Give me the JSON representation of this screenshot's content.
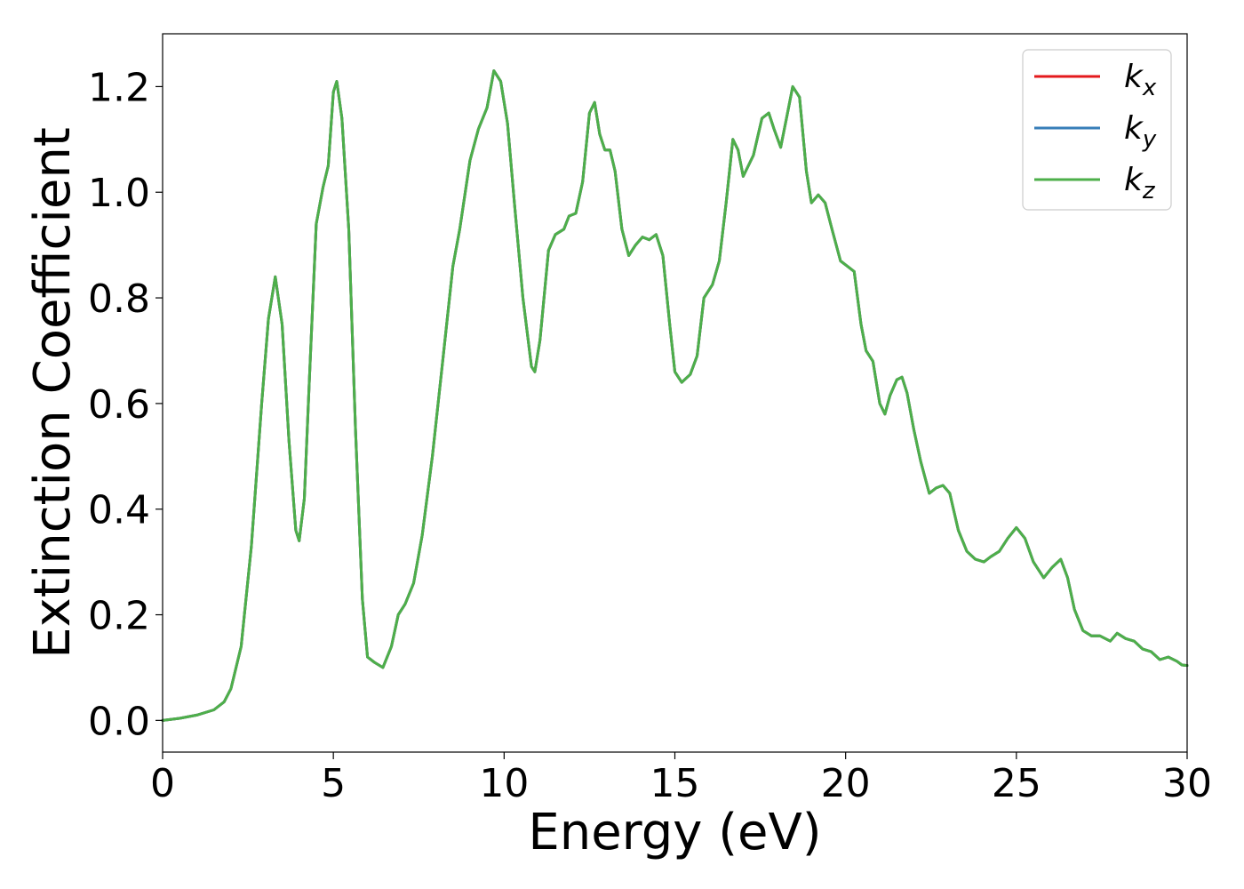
{
  "chart_data": {
    "type": "line",
    "title": "",
    "xlabel": "Energy (eV)",
    "ylabel": "Extinction Coefficient",
    "xlim": [
      0,
      30
    ],
    "ylim": [
      -0.06,
      1.3
    ],
    "xticks": [
      0,
      5,
      10,
      15,
      20,
      25,
      30
    ],
    "xtick_labels": [
      "0",
      "5",
      "10",
      "15",
      "20",
      "25",
      "30"
    ],
    "yticks": [
      0.0,
      0.2,
      0.4,
      0.6,
      0.8,
      1.0,
      1.2
    ],
    "ytick_labels": [
      "0.0",
      "0.2",
      "0.4",
      "0.6",
      "0.8",
      "1.0",
      "1.2"
    ],
    "grid": false,
    "legend": "top-right",
    "x": [
      0,
      0.5,
      1.0,
      1.5,
      1.8,
      2.0,
      2.3,
      2.6,
      2.9,
      3.1,
      3.3,
      3.5,
      3.7,
      3.9,
      4.0,
      4.15,
      4.3,
      4.5,
      4.7,
      4.85,
      5.0,
      5.1,
      5.25,
      5.45,
      5.65,
      5.85,
      6.0,
      6.2,
      6.45,
      6.7,
      6.9,
      7.1,
      7.35,
      7.6,
      7.9,
      8.2,
      8.5,
      8.7,
      9.0,
      9.25,
      9.5,
      9.7,
      9.9,
      10.1,
      10.3,
      10.55,
      10.8,
      10.9,
      11.05,
      11.3,
      11.5,
      11.75,
      11.9,
      12.1,
      12.3,
      12.5,
      12.65,
      12.8,
      12.95,
      13.1,
      13.25,
      13.45,
      13.65,
      13.85,
      14.05,
      14.25,
      14.45,
      14.65,
      14.85,
      15.0,
      15.2,
      15.45,
      15.65,
      15.85,
      16.1,
      16.3,
      16.5,
      16.7,
      16.85,
      17.0,
      17.3,
      17.55,
      17.75,
      17.9,
      18.1,
      18.3,
      18.45,
      18.65,
      18.85,
      19.0,
      19.2,
      19.4,
      19.6,
      19.85,
      20.05,
      20.25,
      20.45,
      20.6,
      20.8,
      21.0,
      21.15,
      21.3,
      21.5,
      21.65,
      21.8,
      22.0,
      22.2,
      22.45,
      22.65,
      22.85,
      23.05,
      23.3,
      23.55,
      23.8,
      24.05,
      24.25,
      24.5,
      24.75,
      25.0,
      25.25,
      25.5,
      25.8,
      26.05,
      26.3,
      26.5,
      26.7,
      26.95,
      27.2,
      27.45,
      27.75,
      27.95,
      28.2,
      28.45,
      28.7,
      28.95,
      29.2,
      29.45,
      29.7,
      29.85,
      30.0
    ],
    "series": [
      {
        "name": "k_x",
        "color": "#e41a1c",
        "values": [
          0.0,
          0.004,
          0.01,
          0.02,
          0.035,
          0.06,
          0.14,
          0.33,
          0.6,
          0.76,
          0.84,
          0.75,
          0.53,
          0.36,
          0.34,
          0.42,
          0.65,
          0.94,
          1.01,
          1.05,
          1.19,
          1.21,
          1.14,
          0.93,
          0.55,
          0.23,
          0.12,
          0.11,
          0.1,
          0.14,
          0.2,
          0.22,
          0.26,
          0.35,
          0.5,
          0.68,
          0.86,
          0.93,
          1.06,
          1.12,
          1.16,
          1.23,
          1.21,
          1.13,
          0.98,
          0.8,
          0.67,
          0.66,
          0.72,
          0.89,
          0.92,
          0.93,
          0.955,
          0.96,
          1.02,
          1.15,
          1.17,
          1.11,
          1.08,
          1.08,
          1.04,
          0.93,
          0.88,
          0.9,
          0.915,
          0.91,
          0.92,
          0.88,
          0.75,
          0.66,
          0.64,
          0.655,
          0.69,
          0.8,
          0.825,
          0.87,
          0.98,
          1.1,
          1.08,
          1.03,
          1.07,
          1.14,
          1.15,
          1.12,
          1.085,
          1.15,
          1.2,
          1.18,
          1.04,
          0.98,
          0.995,
          0.98,
          0.93,
          0.87,
          0.86,
          0.85,
          0.75,
          0.7,
          0.68,
          0.6,
          0.58,
          0.615,
          0.645,
          0.65,
          0.62,
          0.55,
          0.49,
          0.43,
          0.44,
          0.445,
          0.43,
          0.36,
          0.32,
          0.305,
          0.3,
          0.31,
          0.32,
          0.345,
          0.365,
          0.345,
          0.3,
          0.27,
          0.29,
          0.305,
          0.27,
          0.21,
          0.17,
          0.16,
          0.16,
          0.15,
          0.165,
          0.155,
          0.15,
          0.135,
          0.13,
          0.115,
          0.12,
          0.112,
          0.105,
          0.104
        ]
      },
      {
        "name": "k_y",
        "color": "#377eb8",
        "values": [
          0.0,
          0.004,
          0.01,
          0.02,
          0.035,
          0.06,
          0.14,
          0.33,
          0.6,
          0.76,
          0.84,
          0.75,
          0.53,
          0.36,
          0.34,
          0.42,
          0.65,
          0.94,
          1.01,
          1.05,
          1.19,
          1.21,
          1.14,
          0.93,
          0.55,
          0.23,
          0.12,
          0.11,
          0.1,
          0.14,
          0.2,
          0.22,
          0.26,
          0.35,
          0.5,
          0.68,
          0.86,
          0.93,
          1.06,
          1.12,
          1.16,
          1.23,
          1.21,
          1.13,
          0.98,
          0.8,
          0.67,
          0.66,
          0.72,
          0.89,
          0.92,
          0.93,
          0.955,
          0.96,
          1.02,
          1.15,
          1.17,
          1.11,
          1.08,
          1.08,
          1.04,
          0.93,
          0.88,
          0.9,
          0.915,
          0.91,
          0.92,
          0.88,
          0.75,
          0.66,
          0.64,
          0.655,
          0.69,
          0.8,
          0.825,
          0.87,
          0.98,
          1.1,
          1.08,
          1.03,
          1.07,
          1.14,
          1.15,
          1.12,
          1.085,
          1.15,
          1.2,
          1.18,
          1.04,
          0.98,
          0.995,
          0.98,
          0.93,
          0.87,
          0.86,
          0.85,
          0.75,
          0.7,
          0.68,
          0.6,
          0.58,
          0.615,
          0.645,
          0.65,
          0.62,
          0.55,
          0.49,
          0.43,
          0.44,
          0.445,
          0.43,
          0.36,
          0.32,
          0.305,
          0.3,
          0.31,
          0.32,
          0.345,
          0.365,
          0.345,
          0.3,
          0.27,
          0.29,
          0.305,
          0.27,
          0.21,
          0.17,
          0.16,
          0.16,
          0.15,
          0.165,
          0.155,
          0.15,
          0.135,
          0.13,
          0.115,
          0.12,
          0.112,
          0.105,
          0.104
        ]
      },
      {
        "name": "k_z",
        "color": "#4daf4a",
        "values": [
          0.0,
          0.004,
          0.01,
          0.02,
          0.035,
          0.06,
          0.14,
          0.33,
          0.6,
          0.76,
          0.84,
          0.75,
          0.53,
          0.36,
          0.34,
          0.42,
          0.65,
          0.94,
          1.01,
          1.05,
          1.19,
          1.21,
          1.14,
          0.93,
          0.55,
          0.23,
          0.12,
          0.11,
          0.1,
          0.14,
          0.2,
          0.22,
          0.26,
          0.35,
          0.5,
          0.68,
          0.86,
          0.93,
          1.06,
          1.12,
          1.16,
          1.23,
          1.21,
          1.13,
          0.98,
          0.8,
          0.67,
          0.66,
          0.72,
          0.89,
          0.92,
          0.93,
          0.955,
          0.96,
          1.02,
          1.15,
          1.17,
          1.11,
          1.08,
          1.08,
          1.04,
          0.93,
          0.88,
          0.9,
          0.915,
          0.91,
          0.92,
          0.88,
          0.75,
          0.66,
          0.64,
          0.655,
          0.69,
          0.8,
          0.825,
          0.87,
          0.98,
          1.1,
          1.08,
          1.03,
          1.07,
          1.14,
          1.15,
          1.12,
          1.085,
          1.15,
          1.2,
          1.18,
          1.04,
          0.98,
          0.995,
          0.98,
          0.93,
          0.87,
          0.86,
          0.85,
          0.75,
          0.7,
          0.68,
          0.6,
          0.58,
          0.615,
          0.645,
          0.65,
          0.62,
          0.55,
          0.49,
          0.43,
          0.44,
          0.445,
          0.43,
          0.36,
          0.32,
          0.305,
          0.3,
          0.31,
          0.32,
          0.345,
          0.365,
          0.345,
          0.3,
          0.27,
          0.29,
          0.305,
          0.27,
          0.21,
          0.17,
          0.16,
          0.16,
          0.15,
          0.165,
          0.155,
          0.15,
          0.135,
          0.13,
          0.115,
          0.12,
          0.112,
          0.105,
          0.104
        ]
      }
    ]
  },
  "legend": {
    "items": [
      {
        "base": "k",
        "sub": "x",
        "color": "#e41a1c"
      },
      {
        "base": "k",
        "sub": "y",
        "color": "#377eb8"
      },
      {
        "base": "k",
        "sub": "z",
        "color": "#4daf4a"
      }
    ]
  }
}
